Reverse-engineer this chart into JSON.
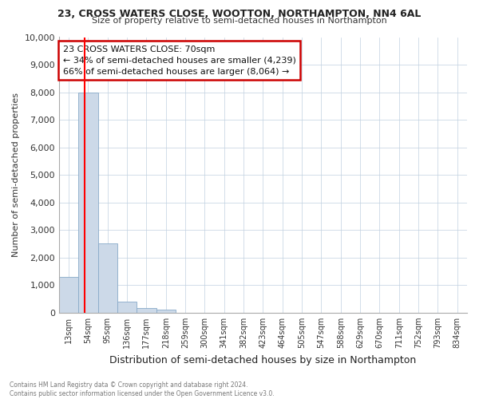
{
  "title1": "23, CROSS WATERS CLOSE, WOOTTON, NORTHAMPTON, NN4 6AL",
  "title2": "Size of property relative to semi-detached houses in Northampton",
  "xlabel": "Distribution of semi-detached houses by size in Northampton",
  "ylabel": "Number of semi-detached properties",
  "footnote": "Contains HM Land Registry data © Crown copyright and database right 2024.\nContains public sector information licensed under the Open Government Licence v3.0.",
  "categories": [
    "13sqm",
    "54sqm",
    "95sqm",
    "136sqm",
    "177sqm",
    "218sqm",
    "259sqm",
    "300sqm",
    "341sqm",
    "382sqm",
    "423sqm",
    "464sqm",
    "505sqm",
    "547sqm",
    "588sqm",
    "629sqm",
    "670sqm",
    "711sqm",
    "752sqm",
    "793sqm",
    "834sqm"
  ],
  "values": [
    1300,
    8000,
    2500,
    400,
    175,
    100,
    0,
    0,
    0,
    0,
    0,
    0,
    0,
    0,
    0,
    0,
    0,
    0,
    0,
    0,
    0
  ],
  "bar_color": "#ccd9e8",
  "bar_edgecolor": "#88aac8",
  "ylim": [
    0,
    10000
  ],
  "yticks": [
    0,
    1000,
    2000,
    3000,
    4000,
    5000,
    6000,
    7000,
    8000,
    9000,
    10000
  ],
  "red_line_index": 1,
  "annotation_title": "23 CROSS WATERS CLOSE: 70sqm",
  "annotation_line1": "← 34% of semi-detached houses are smaller (4,239)",
  "annotation_line2": "66% of semi-detached houses are larger (8,064) →",
  "annotation_box_color": "#cc0000",
  "background_color": "#ffffff",
  "grid_color": "#c0d0e0"
}
